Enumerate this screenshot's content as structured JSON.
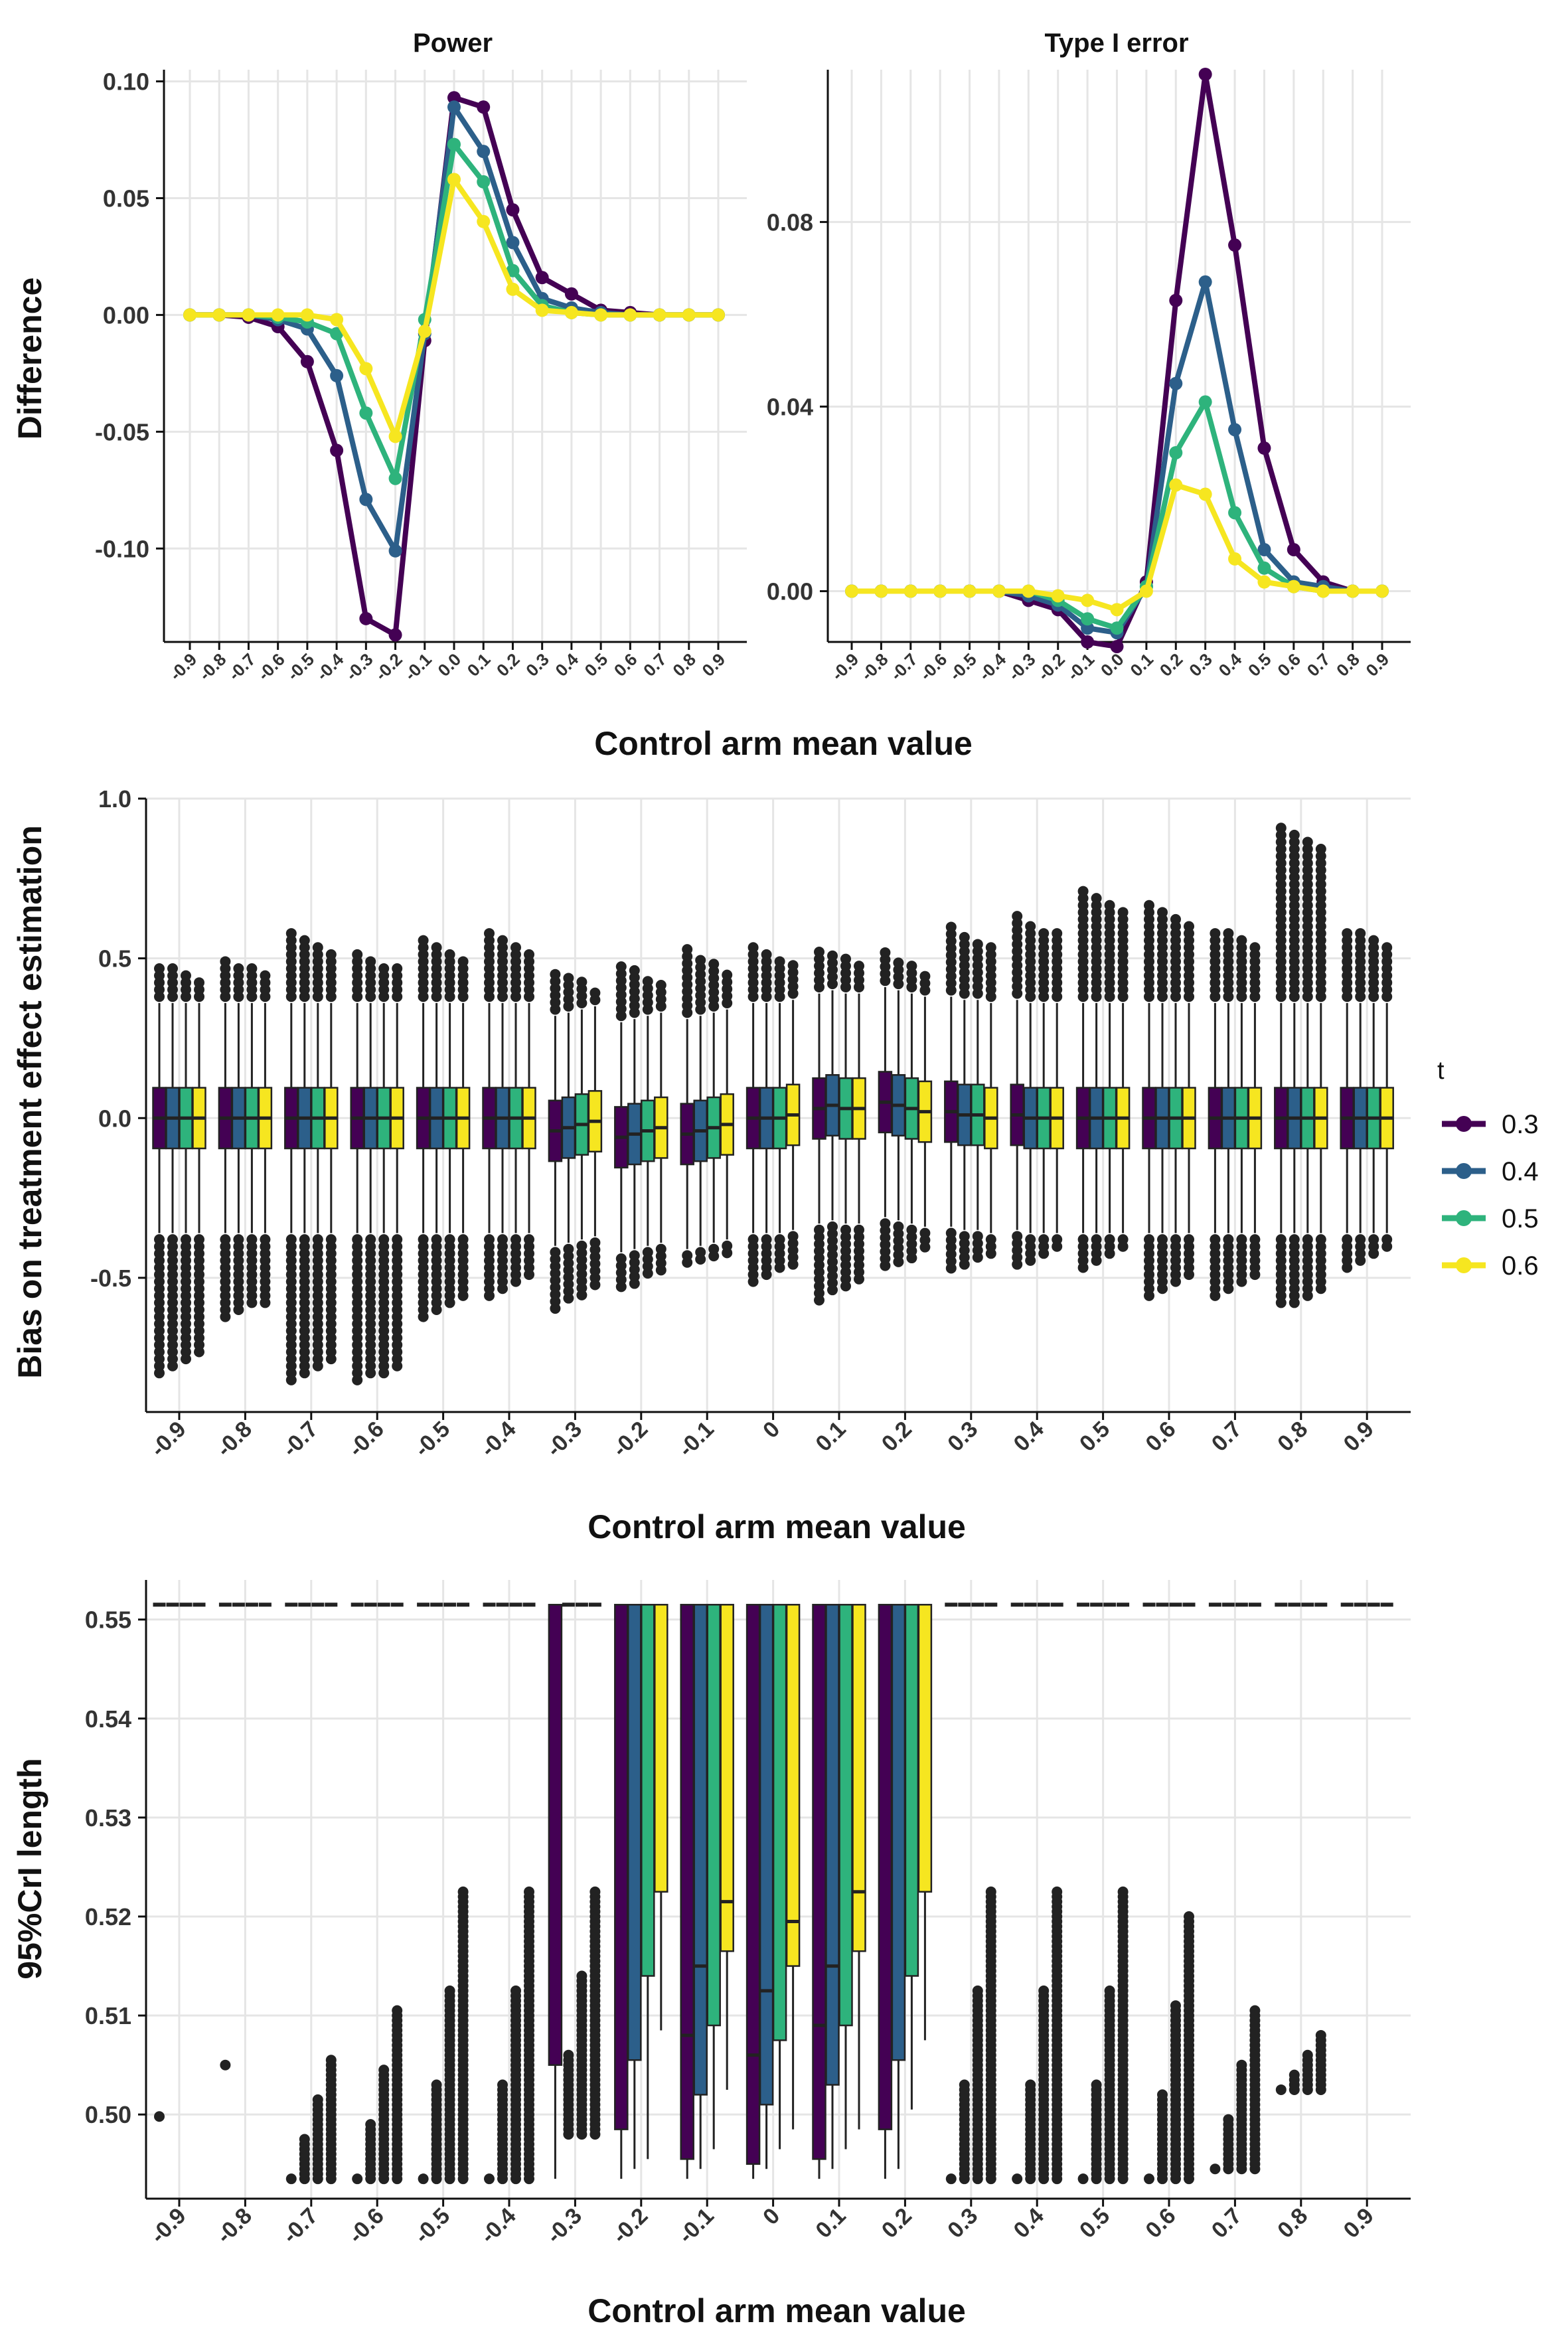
{
  "figure": {
    "xlabel_common": "Control arm mean value"
  },
  "colors": {
    "t0.3": "#440154",
    "t0.4": "#2c5f8a",
    "t0.5": "#2eb37c",
    "t0.6": "#f6e620",
    "grid": "#e5e5e5",
    "outlier": "#222222"
  },
  "legend": {
    "title": "t",
    "entries": [
      "0.3",
      "0.4",
      "0.5",
      "0.6"
    ]
  },
  "chart_data": [
    {
      "id": "power",
      "type": "line",
      "title": "Power",
      "xlabel": "",
      "ylabel": "Difference",
      "x": [
        "-0.9",
        "-0.8",
        "-0.7",
        "-0.6",
        "-0.5",
        "-0.4",
        "-0.3",
        "-0.2",
        "-0.1",
        "0.0",
        "0.1",
        "0.2",
        "0.3",
        "0.4",
        "0.5",
        "0.6",
        "0.7",
        "0.8",
        "0.9"
      ],
      "ylim": [
        -0.14,
        0.105
      ],
      "yticks": [
        "0.10",
        "0.05",
        "0.00",
        "-0.05",
        "-0.10"
      ],
      "series": [
        {
          "name": "0.3",
          "values": [
            0,
            0,
            -0.001,
            -0.005,
            -0.02,
            -0.058,
            -0.13,
            -0.137,
            -0.011,
            0.093,
            0.089,
            0.045,
            0.016,
            0.009,
            0.002,
            0.001,
            0,
            0,
            0
          ]
        },
        {
          "name": "0.4",
          "values": [
            0,
            0,
            0,
            -0.002,
            -0.006,
            -0.026,
            -0.079,
            -0.101,
            -0.008,
            0.089,
            0.07,
            0.031,
            0.007,
            0.003,
            0.001,
            0,
            0,
            0,
            0
          ]
        },
        {
          "name": "0.5",
          "values": [
            0,
            0,
            0,
            -0.001,
            -0.003,
            -0.008,
            -0.042,
            -0.07,
            -0.002,
            0.073,
            0.057,
            0.019,
            0.004,
            0.001,
            0,
            0,
            0,
            0,
            0
          ]
        },
        {
          "name": "0.6",
          "values": [
            0,
            0,
            0,
            0,
            0,
            -0.002,
            -0.023,
            -0.052,
            -0.007,
            0.058,
            0.04,
            0.011,
            0.002,
            0.001,
            0,
            0,
            0,
            0,
            0
          ]
        }
      ]
    },
    {
      "id": "type1",
      "type": "line",
      "title": "Type I error",
      "xlabel": "",
      "ylabel": "",
      "x": [
        "-0.9",
        "-0.8",
        "-0.7",
        "-0.6",
        "-0.5",
        "-0.4",
        "-0.3",
        "-0.2",
        "-0.1",
        "0.0",
        "0.1",
        "0.2",
        "0.3",
        "0.4",
        "0.5",
        "0.6",
        "0.7",
        "0.8",
        "0.9"
      ],
      "ylim": [
        -0.011,
        0.113
      ],
      "yticks": [
        "0.08",
        "0.04",
        "0.00"
      ],
      "series": [
        {
          "name": "0.3",
          "values": [
            0,
            0,
            0,
            0,
            0,
            0,
            -0.002,
            -0.004,
            -0.011,
            -0.012,
            0.002,
            0.063,
            0.112,
            0.075,
            0.031,
            0.009,
            0.002,
            0,
            0
          ]
        },
        {
          "name": "0.4",
          "values": [
            0,
            0,
            0,
            0,
            0,
            0,
            -0.001,
            -0.003,
            -0.008,
            -0.009,
            0.001,
            0.045,
            0.067,
            0.035,
            0.009,
            0.002,
            0.001,
            0,
            0
          ]
        },
        {
          "name": "0.5",
          "values": [
            0,
            0,
            0,
            0,
            0,
            0,
            0,
            -0.002,
            -0.006,
            -0.008,
            0.001,
            0.03,
            0.041,
            0.017,
            0.005,
            0.001,
            0,
            0,
            0
          ]
        },
        {
          "name": "0.6",
          "values": [
            0,
            0,
            0,
            0,
            0,
            0,
            0,
            -0.001,
            -0.002,
            -0.004,
            0,
            0.023,
            0.021,
            0.007,
            0.002,
            0.001,
            0,
            0,
            0
          ]
        }
      ]
    },
    {
      "id": "bias",
      "type": "box",
      "title": "",
      "xlabel": "Control arm mean value",
      "ylabel": "Bias on treatment effect estimation",
      "categories": [
        "-0.9",
        "-0.8",
        "-0.7",
        "-0.6",
        "-0.5",
        "-0.4",
        "-0.3",
        "-0.2",
        "-0.1",
        "0",
        "0.1",
        "0.2",
        "0.3",
        "0.4",
        "0.5",
        "0.6",
        "0.7",
        "0.8",
        "0.9"
      ],
      "ylim": [
        -0.92,
        1.0
      ],
      "yticks": [
        "1.0",
        "0.5",
        "0.0",
        "-0.5"
      ],
      "series_names": [
        "0.3",
        "0.4",
        "0.5",
        "0.6"
      ],
      "medians": [
        [
          0,
          0,
          0,
          0
        ],
        [
          0,
          0,
          0,
          0
        ],
        [
          0,
          0,
          0,
          0
        ],
        [
          0,
          0,
          0,
          0
        ],
        [
          0,
          0,
          0,
          0
        ],
        [
          0,
          0,
          0,
          0
        ],
        [
          -0.04,
          -0.03,
          -0.02,
          -0.01
        ],
        [
          -0.06,
          -0.05,
          -0.04,
          -0.03
        ],
        [
          -0.05,
          -0.04,
          -0.03,
          -0.02
        ],
        [
          0,
          0,
          0,
          0.01
        ],
        [
          0.03,
          0.04,
          0.03,
          0.03
        ],
        [
          0.05,
          0.04,
          0.03,
          0.02
        ],
        [
          0.02,
          0.01,
          0.01,
          0
        ],
        [
          0.01,
          0,
          0,
          0
        ],
        [
          0,
          0,
          0,
          0
        ],
        [
          0,
          0,
          0,
          0
        ],
        [
          0,
          0,
          0,
          0
        ],
        [
          0,
          0,
          0,
          0
        ],
        [
          0,
          0,
          0,
          0
        ]
      ],
      "box_half_height": 0.095,
      "whisker_high": 0.36,
      "whisker_low": -0.36,
      "outlier_high_max": [
        0.49,
        0.51,
        0.59,
        0.53,
        0.56,
        0.58,
        0.47,
        0.49,
        0.53,
        0.54,
        0.54,
        0.52,
        0.6,
        0.64,
        0.72,
        0.68,
        0.6,
        0.92,
        0.6
      ],
      "outlier_low_min": [
        -0.81,
        -0.64,
        -0.83,
        -0.84,
        -0.63,
        -0.57,
        -0.6,
        -0.54,
        -0.47,
        -0.52,
        -0.58,
        -0.48,
        -0.49,
        -0.47,
        -0.47,
        -0.56,
        -0.56,
        -0.6,
        -0.48
      ]
    },
    {
      "id": "crl",
      "type": "box",
      "title": "",
      "xlabel": "Control arm mean value",
      "ylabel": "95%CrI length",
      "categories": [
        "-0.9",
        "-0.8",
        "-0.7",
        "-0.6",
        "-0.5",
        "-0.4",
        "-0.3",
        "-0.2",
        "-0.1",
        "0",
        "0.1",
        "0.2",
        "0.3",
        "0.4",
        "0.5",
        "0.6",
        "0.7",
        "0.8",
        "0.9"
      ],
      "ylim": [
        0.4915,
        0.554
      ],
      "yticks": [
        "0.55",
        "0.54",
        "0.53",
        "0.52",
        "0.51",
        "0.50"
      ],
      "ceiling": 0.5515,
      "series_names": [
        "0.3",
        "0.4",
        "0.5",
        "0.6"
      ],
      "box_low": [
        null,
        null,
        null,
        null,
        null,
        null,
        [
          0.505,
          null,
          null,
          null
        ],
        [
          0.4985,
          0.5055,
          0.514,
          0.5225
        ],
        [
          0.4955,
          0.502,
          0.509,
          0.5165
        ],
        [
          0.495,
          0.501,
          0.5075,
          0.515
        ],
        [
          0.4955,
          0.503,
          0.509,
          0.5165
        ],
        [
          0.4985,
          0.5055,
          0.514,
          0.5225
        ],
        null,
        null,
        null,
        null,
        null,
        null,
        null
      ],
      "medians": [
        null,
        null,
        null,
        null,
        null,
        null,
        [
          null,
          null,
          null,
          null
        ],
        [
          null,
          null,
          null,
          null
        ],
        [
          0.508,
          0.515,
          null,
          0.5215
        ],
        [
          0.506,
          0.5125,
          null,
          0.5195
        ],
        [
          0.509,
          0.515,
          null,
          0.5225
        ],
        [
          null,
          null,
          null,
          null
        ],
        null,
        null,
        null,
        null,
        null,
        null,
        null
      ],
      "whisker_low": [
        null,
        null,
        null,
        null,
        null,
        null,
        [
          0.4935,
          null,
          null,
          null
        ],
        [
          0.4935,
          0.4945,
          0.4955,
          0.5085
        ],
        [
          0.4935,
          0.4945,
          0.4965,
          0.5025
        ],
        [
          0.4935,
          0.4945,
          0.4965,
          0.4985
        ],
        [
          0.4935,
          0.4945,
          0.4965,
          0.4985
        ],
        [
          0.4935,
          0.4945,
          0.5005,
          0.5075
        ],
        null,
        null,
        null,
        null,
        null,
        null,
        null
      ],
      "outlier_low_min": [
        0.4998,
        0.505,
        0.4935,
        0.4935,
        0.4935,
        0.4935,
        0.498,
        null,
        null,
        null,
        null,
        null,
        0.4935,
        0.4935,
        0.4935,
        0.4935,
        0.4945,
        0.5025,
        null
      ],
      "outlier_high_max": [
        0.4998,
        0.505,
        0.5055,
        0.5105,
        0.5225,
        0.5225,
        0.5225,
        null,
        null,
        null,
        null,
        null,
        0.5225,
        0.5225,
        0.5225,
        0.52,
        0.5105,
        0.508,
        null
      ]
    }
  ]
}
